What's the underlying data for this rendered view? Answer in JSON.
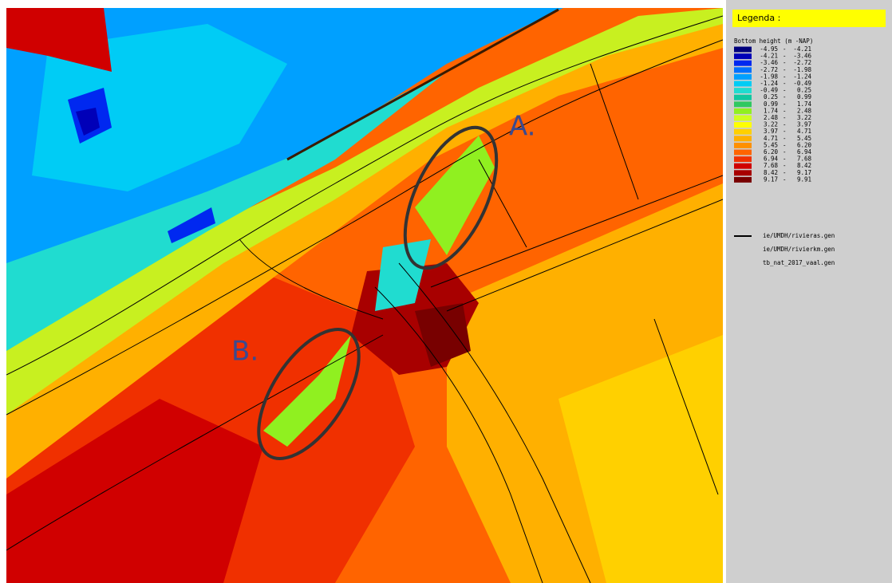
{
  "map": {
    "annotations": [
      {
        "label": "A."
      },
      {
        "label": "B."
      }
    ]
  },
  "legend": {
    "title": "Legenda :",
    "subtitle": "Bottom height (m -NAP)",
    "range_separator": "-",
    "classes": [
      {
        "from": "-4.95",
        "to": "-4.21",
        "color": "#00007c"
      },
      {
        "from": "-4.21",
        "to": "-3.46",
        "color": "#0000b8"
      },
      {
        "from": "-3.46",
        "to": "-2.72",
        "color": "#0028f0"
      },
      {
        "from": "-2.72",
        "to": "-1.98",
        "color": "#0070ff"
      },
      {
        "from": "-1.98",
        "to": "-1.24",
        "color": "#00a0ff"
      },
      {
        "from": "-1.24",
        "to": "-0.49",
        "color": "#00ccf5"
      },
      {
        "from": "-0.49",
        "to": "0.25",
        "color": "#20dcd0"
      },
      {
        "from": "0.25",
        "to": "0.99",
        "color": "#10c8a0"
      },
      {
        "from": "0.99",
        "to": "1.74",
        "color": "#30c860"
      },
      {
        "from": "1.74",
        "to": "2.48",
        "color": "#90f020"
      },
      {
        "from": "2.48",
        "to": "3.22",
        "color": "#d0ff20"
      },
      {
        "from": "3.22",
        "to": "3.97",
        "color": "#ffff00"
      },
      {
        "from": "3.97",
        "to": "4.71",
        "color": "#ffd000"
      },
      {
        "from": "4.71",
        "to": "5.45",
        "color": "#ffb000"
      },
      {
        "from": "5.45",
        "to": "6.20",
        "color": "#ff9000"
      },
      {
        "from": "6.20",
        "to": "6.94",
        "color": "#ff6400"
      },
      {
        "from": "6.94",
        "to": "7.68",
        "color": "#f03000"
      },
      {
        "from": "7.68",
        "to": "8.42",
        "color": "#d00000"
      },
      {
        "from": "8.42",
        "to": "9.17",
        "color": "#a80000"
      },
      {
        "from": "9.17",
        "to": "9.91",
        "color": "#780000"
      }
    ],
    "layers": [
      {
        "name": "ie/UMDH/rivieras.gen",
        "line": true
      },
      {
        "name": "ie/UMDH/rivierkm.gen",
        "line": false
      },
      {
        "name": "tb_nat_2017_vaal.gen",
        "line": false
      }
    ]
  }
}
